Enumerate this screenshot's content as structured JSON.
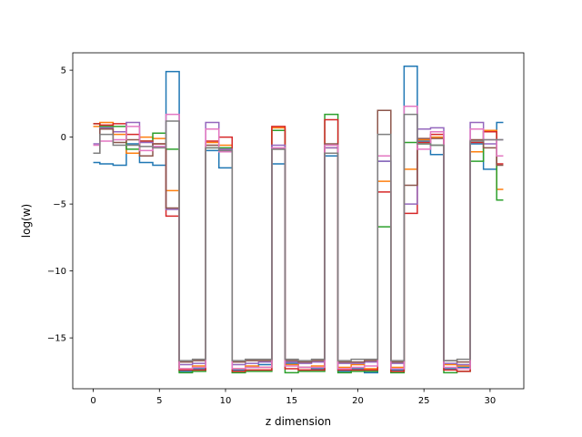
{
  "chart_data": {
    "type": "line",
    "drawstyle": "steps-mid",
    "title": "",
    "xlabel": "z dimension",
    "ylabel": "log(w)",
    "xlim": [
      -1.55,
      32.55
    ],
    "ylim": [
      -18.8,
      6.3
    ],
    "xticks": [
      0,
      5,
      10,
      15,
      20,
      25,
      30
    ],
    "yticks": [
      5,
      0,
      -5,
      -10,
      -15
    ],
    "ytick_labels": [
      "5",
      "0",
      "−5",
      "−10",
      "−15"
    ],
    "grid": false,
    "legend": "none",
    "series": [
      {
        "color": "#1f77b4",
        "values": [
          -1.9,
          -2.0,
          -2.1,
          -0.5,
          -1.9,
          -2.1,
          4.9,
          -17.5,
          -17.3,
          -1.0,
          -2.3,
          -17.4,
          -17.2,
          -17.0,
          -2.0,
          -16.9,
          -17.2,
          -17.3,
          -1.4,
          -17.5,
          -17.3,
          -17.6,
          -1.8,
          -17.4,
          5.3,
          -0.3,
          -1.3,
          -17.3,
          -17.2,
          -0.5,
          -2.4,
          1.1
        ]
      },
      {
        "color": "#ff7f0e",
        "values": [
          0.8,
          1.1,
          0.2,
          -1.2,
          0.0,
          -0.1,
          -4.0,
          -17.3,
          -17.1,
          -0.4,
          -0.6,
          -17.3,
          -17.1,
          -17.2,
          0.7,
          -17.0,
          -17.2,
          -17.1,
          -0.8,
          -17.2,
          -17.0,
          -17.3,
          -3.3,
          -17.2,
          -2.4,
          -0.2,
          0.0,
          -17.0,
          -17.1,
          -1.1,
          0.5,
          -3.9
        ]
      },
      {
        "color": "#2ca02c",
        "values": [
          1.0,
          0.8,
          0.8,
          -0.9,
          -0.3,
          0.3,
          -0.9,
          -17.6,
          -17.5,
          -0.8,
          -0.8,
          -17.6,
          -17.5,
          -17.5,
          0.5,
          -17.6,
          -17.5,
          -17.5,
          1.7,
          -17.6,
          -17.5,
          -17.5,
          -6.7,
          -17.6,
          -0.4,
          -0.5,
          -0.6,
          -17.6,
          -17.5,
          -1.8,
          0.4,
          -4.7
        ]
      },
      {
        "color": "#d62728",
        "values": [
          1.0,
          0.9,
          1.0,
          0.2,
          -0.3,
          -0.5,
          -5.9,
          -17.4,
          -17.4,
          -0.3,
          0.0,
          -17.5,
          -17.4,
          -17.4,
          0.8,
          -17.3,
          -17.4,
          -17.4,
          1.3,
          -17.4,
          -17.4,
          -17.4,
          -4.1,
          -17.5,
          -5.7,
          -0.4,
          0.2,
          -17.4,
          -17.5,
          -0.4,
          0.4,
          -2.0
        ]
      },
      {
        "color": "#9467bd",
        "values": [
          -0.5,
          0.7,
          0.4,
          1.1,
          -0.4,
          -0.7,
          -5.4,
          -17.0,
          -16.9,
          1.1,
          -0.9,
          -17.0,
          -16.9,
          -16.8,
          -0.6,
          -16.8,
          -16.9,
          -16.8,
          -0.8,
          -16.9,
          -16.9,
          -16.8,
          -1.8,
          -16.9,
          -5.0,
          0.6,
          0.7,
          -16.9,
          -17.0,
          1.1,
          -0.5,
          -0.2
        ]
      },
      {
        "color": "#8c564b",
        "values": [
          -1.2,
          0.6,
          -0.4,
          -0.2,
          -1.4,
          -0.5,
          -5.3,
          -16.8,
          -16.7,
          -0.6,
          -1.0,
          -16.8,
          -16.7,
          -16.7,
          -0.9,
          -16.7,
          -16.8,
          -16.7,
          -0.5,
          -16.8,
          -16.8,
          -16.7,
          2.0,
          -16.8,
          -3.6,
          -0.1,
          -0.1,
          -16.7,
          -16.8,
          -0.2,
          -0.8,
          -2.1
        ]
      },
      {
        "color": "#e377c2",
        "values": [
          -0.6,
          -0.3,
          -0.2,
          0.8,
          -1.0,
          -0.7,
          1.7,
          -17.3,
          -17.2,
          0.6,
          -1.1,
          -17.3,
          -17.2,
          -17.2,
          -0.8,
          -17.1,
          -17.2,
          -17.2,
          -0.6,
          -17.3,
          -17.2,
          -17.1,
          -1.4,
          -17.3,
          2.3,
          -0.9,
          0.4,
          -17.2,
          -17.3,
          0.6,
          -0.2,
          -1.4
        ]
      },
      {
        "color": "#7f7f7f",
        "values": [
          -1.2,
          0.2,
          -0.6,
          -0.6,
          -0.7,
          -0.8,
          1.2,
          -16.7,
          -16.6,
          -0.8,
          -1.0,
          -16.7,
          -16.6,
          -16.6,
          -0.9,
          -16.6,
          -16.7,
          -16.6,
          -1.2,
          -16.7,
          -16.6,
          -16.6,
          0.2,
          -16.7,
          1.7,
          -0.5,
          -0.6,
          -16.7,
          -16.6,
          -0.3,
          -0.2,
          -0.2
        ]
      }
    ]
  }
}
